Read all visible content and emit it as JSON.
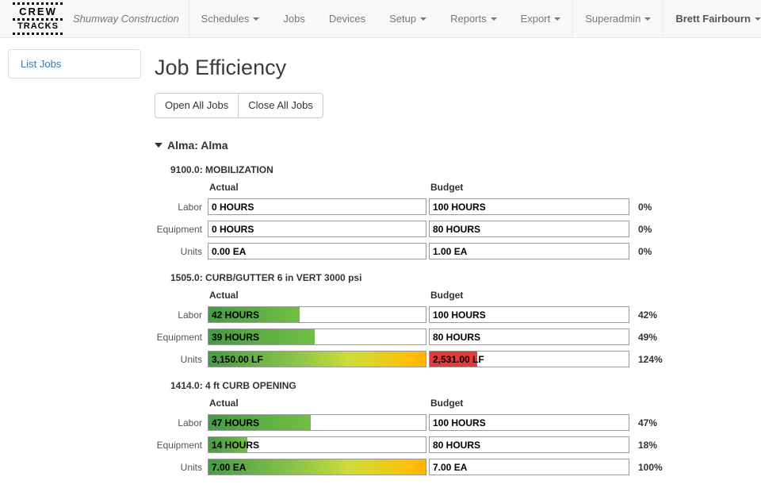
{
  "navbar": {
    "logo": {
      "line1": "CREW",
      "line2": "TRACKS"
    },
    "brand": "Shumway Construction",
    "items": [
      {
        "label": "Schedules",
        "dropdown": true
      },
      {
        "label": "Jobs",
        "dropdown": false
      },
      {
        "label": "Devices",
        "dropdown": false
      },
      {
        "label": "Setup",
        "dropdown": true
      },
      {
        "label": "Reports",
        "dropdown": true
      },
      {
        "label": "Export",
        "dropdown": true
      }
    ],
    "right_items": [
      {
        "label": "Superadmin",
        "dropdown": true
      },
      {
        "label": "Brett Fairbourn",
        "dropdown": true
      }
    ]
  },
  "sidebar": {
    "items": [
      {
        "label": "List Jobs"
      }
    ]
  },
  "main": {
    "title": "Job Efficiency",
    "open_all_label": "Open All Jobs",
    "close_all_label": "Close All Jobs",
    "group": {
      "label": "Alma: Alma",
      "collapsed": false
    },
    "columns": {
      "actual": "Actual",
      "budget": "Budget"
    },
    "jobs": [
      {
        "title": "9100.0: MOBILIZATION",
        "rows": [
          {
            "label": "Labor",
            "actual": "0 HOURS",
            "budget": "100 HOURS",
            "pct": "0%",
            "pct_value": 0
          },
          {
            "label": "Equipment",
            "actual": "0 HOURS",
            "budget": "80 HOURS",
            "pct": "0%",
            "pct_value": 0
          },
          {
            "label": "Units",
            "actual": "0.00 EA",
            "budget": "1.00 EA",
            "pct": "0%",
            "pct_value": 0
          }
        ]
      },
      {
        "title": "1505.0: CURB/GUTTER 6 in VERT 3000 psi",
        "rows": [
          {
            "label": "Labor",
            "actual": "42 HOURS",
            "budget": "100 HOURS",
            "pct": "42%",
            "pct_value": 42
          },
          {
            "label": "Equipment",
            "actual": "39 HOURS",
            "budget": "80 HOURS",
            "pct": "49%",
            "pct_value": 49
          },
          {
            "label": "Units",
            "actual": "3,150.00 LF",
            "budget": "2,531.00 LF",
            "pct": "124%",
            "pct_value": 124
          }
        ]
      },
      {
        "title": "1414.0: 4 ft CURB OPENING",
        "rows": [
          {
            "label": "Labor",
            "actual": "47 HOURS",
            "budget": "100 HOURS",
            "pct": "47%",
            "pct_value": 47
          },
          {
            "label": "Equipment",
            "actual": "14 HOURS",
            "budget": "80 HOURS",
            "pct": "18%",
            "pct_value": 18
          },
          {
            "label": "Units",
            "actual": "7.00 EA",
            "budget": "7.00 EA",
            "pct": "100%",
            "pct_value": 100
          }
        ]
      }
    ]
  },
  "colors": {
    "bar_green": "#449d44",
    "bar_yellow": "#ffc107",
    "over_red": "#e4393c",
    "link_blue": "#337ab7",
    "navbar_bg": "#f8f8f8"
  }
}
